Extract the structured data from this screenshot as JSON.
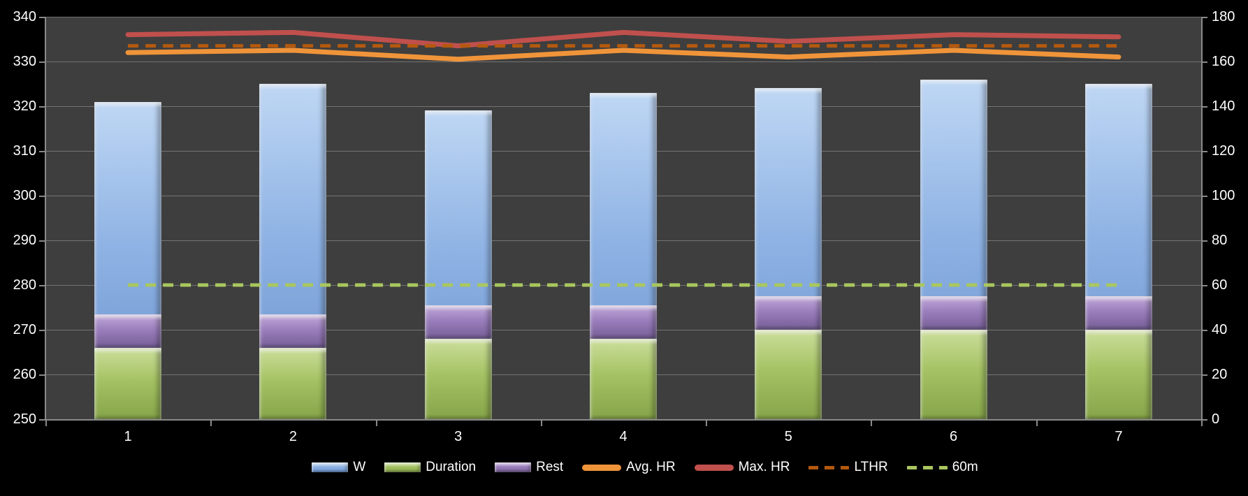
{
  "chart_data": {
    "type": "bar+line",
    "title": "",
    "categories": [
      "1",
      "2",
      "3",
      "4",
      "5",
      "6",
      "7"
    ],
    "left_axis": {
      "min": 250,
      "max": 340,
      "step": 10,
      "tick_labels": [
        "340",
        "330",
        "320",
        "310",
        "300",
        "290",
        "280",
        "270",
        "260",
        "250"
      ]
    },
    "right_axis": {
      "min": 0,
      "max": 180,
      "step": 20,
      "tick_labels": [
        "180",
        "160",
        "140",
        "120",
        "100",
        "80",
        "60",
        "40",
        "20",
        "0"
      ]
    },
    "grid": true,
    "legend_position": "bottom",
    "colors": {
      "page_bg": "#000000",
      "plot_bg": "#3E3E3E",
      "gridline": "#7C7C7C",
      "axis_text": "#FFFFFF"
    },
    "series": [
      {
        "name": "W",
        "kind": "bar",
        "axis": "left",
        "stack": null,
        "values": [
          321,
          325,
          319,
          323,
          324,
          326,
          325
        ],
        "gradient": [
          "#BFD7F4",
          "#8FB3E4",
          "#6890CC"
        ]
      },
      {
        "name": "Duration",
        "kind": "bar",
        "axis": "right",
        "stack": "time",
        "values": [
          32,
          32,
          36,
          36,
          40,
          40,
          40
        ],
        "gradient": [
          "#CBDE9B",
          "#A5C364",
          "#86A449"
        ]
      },
      {
        "name": "Rest",
        "kind": "bar",
        "axis": "right",
        "stack": "time",
        "values": [
          15,
          15,
          15,
          15,
          15,
          15,
          15
        ],
        "gradient": [
          "#C2ABD9",
          "#9B7EBD",
          "#755E95"
        ]
      },
      {
        "name": "Avg. HR",
        "kind": "line",
        "axis": "right",
        "dashed": false,
        "values": [
          164,
          165,
          161,
          165,
          162,
          165,
          162
        ],
        "color": "#F0943A"
      },
      {
        "name": "Max. HR",
        "kind": "line",
        "axis": "right",
        "dashed": false,
        "values": [
          172,
          173,
          167,
          173,
          169,
          172,
          171
        ],
        "color": "#C0504D"
      },
      {
        "name": "LTHR",
        "kind": "line",
        "axis": "right",
        "dashed": true,
        "values": [
          167,
          167,
          167,
          167,
          167,
          167,
          167
        ],
        "color": "#B4590E"
      },
      {
        "name": "60m",
        "kind": "line",
        "axis": "right",
        "dashed": true,
        "values": [
          60,
          60,
          60,
          60,
          60,
          60,
          60
        ],
        "color": "#A9C75E"
      }
    ]
  }
}
